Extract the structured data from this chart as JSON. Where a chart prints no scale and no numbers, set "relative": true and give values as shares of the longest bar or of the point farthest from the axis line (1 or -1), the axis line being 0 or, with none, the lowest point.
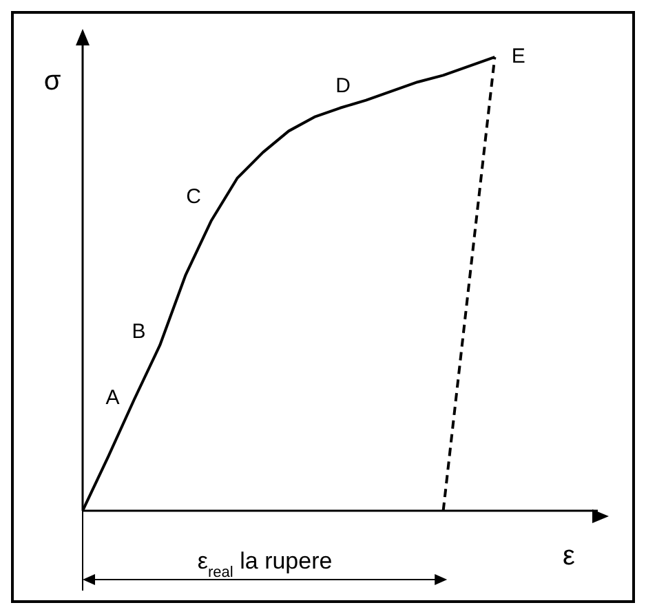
{
  "chart_data": {
    "type": "line",
    "relative": true,
    "xlabel": "ε",
    "ylabel": "σ",
    "marker": "none",
    "categories": [
      null,
      null,
      null,
      null,
      null,
      null,
      null,
      null,
      null,
      null,
      null,
      null,
      null,
      null,
      null,
      null,
      null,
      null,
      null,
      null,
      null
    ],
    "series": [
      {
        "color": "#000000",
        "line_style": "solid",
        "values": [
          0,
          0.12,
          0.245,
          0.365,
          0.52,
          0.64,
          0.733,
          0.79,
          0.837,
          0.868,
          0.888,
          0.905,
          0.925,
          0.945,
          0.96,
          0.98,
          1,
          null,
          null,
          null,
          null
        ]
      },
      {
        "color": "#000000",
        "line_style": "dashed",
        "values": [
          null,
          null,
          null,
          null,
          null,
          null,
          null,
          null,
          null,
          null,
          null,
          null,
          null,
          null,
          0,
          null,
          1,
          null,
          null,
          null,
          null
        ]
      }
    ],
    "annotations": [
      "A",
      "B",
      "C",
      "D",
      "E",
      "ε$_{real}$ la rupere"
    ]
  }
}
